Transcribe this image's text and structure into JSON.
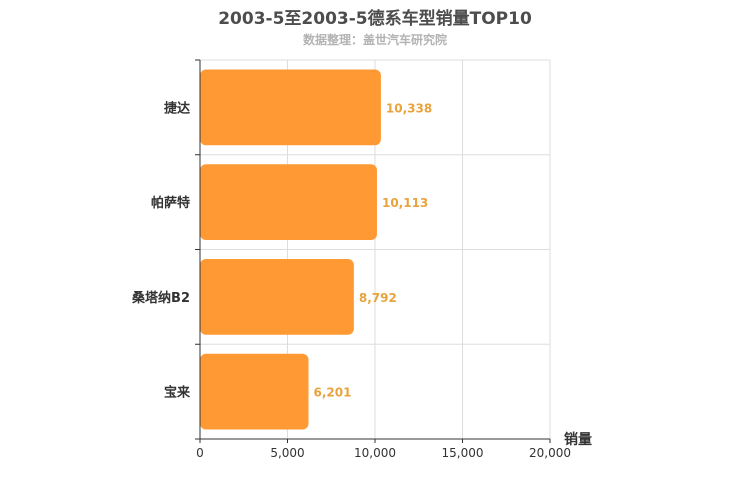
{
  "chart_data": {
    "type": "bar",
    "orientation": "horizontal",
    "title": "2003-5至2003-5德系车型销量TOP10",
    "subtitle": "数据整理：盖世汽车研究院",
    "xlabel": "销量",
    "ylabel": "",
    "categories": [
      "捷达",
      "帕萨特",
      "桑塔纳B2",
      "宝来"
    ],
    "values": [
      10338,
      10113,
      8792,
      6201
    ],
    "data_labels": [
      "10,338",
      "10,113",
      "8,792",
      "6,201"
    ],
    "xlim": [
      0,
      20000
    ],
    "xticks": [
      0,
      5000,
      10000,
      15000,
      20000
    ],
    "xtick_labels": [
      "0",
      "5,000",
      "10,000",
      "15,000",
      "20,000"
    ],
    "grid": true,
    "colors": {
      "bar": "#ff9933",
      "label": "#e8a33d",
      "grid": "#dddddd",
      "axis": "#333333"
    }
  }
}
